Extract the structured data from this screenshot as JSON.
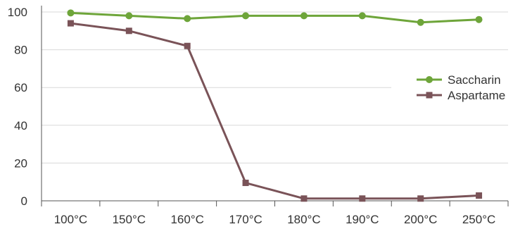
{
  "chart_data": {
    "type": "line",
    "categories": [
      "100°C",
      "150°C",
      "160°C",
      "170°C",
      "180°C",
      "190°C",
      "200°C",
      "250°C"
    ],
    "series": [
      {
        "name": "Saccharin",
        "values": [
          99.5,
          98,
          96.5,
          98,
          98,
          98,
          94.5,
          96
        ],
        "color": "#6ea53a",
        "marker": "circle"
      },
      {
        "name": "Aspartame",
        "values": [
          94,
          90,
          82,
          9.5,
          1.2,
          1.2,
          1.2,
          2.8
        ],
        "color": "#7a5358",
        "marker": "square"
      }
    ],
    "ylim": [
      0,
      100
    ],
    "yticks": [
      0,
      20,
      40,
      60,
      80,
      100
    ],
    "ytick_labels": [
      "0",
      "20",
      "40",
      "60",
      "80",
      "100"
    ],
    "grid": true,
    "legend": "right"
  },
  "colors": {
    "grid": "#d9d9d9",
    "axis": "#555555"
  }
}
